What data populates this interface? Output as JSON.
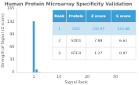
{
  "chart_data": {
    "type": "bar",
    "title": "Human Protein Microarray Specificity Validation",
    "xlabel": "Signal Rank",
    "ylabel": "Strength of Signal (Z score)",
    "x": [
      1,
      2,
      3
    ],
    "values": [
      132.97,
      7.88,
      1.27
    ],
    "color": "#3a9fd8",
    "xlim": [
      0.3,
      32
    ],
    "xticks": [
      1,
      10,
      20,
      30
    ],
    "ylim": [
      0,
      165
    ],
    "yticks": [
      0,
      33,
      66,
      99,
      132,
      165
    ],
    "grid": false,
    "table": {
      "headers": [
        "Rank",
        "Protein",
        "Z score",
        "S score"
      ],
      "rows": [
        [
          "1",
          "CD5",
          "132.97",
          "125.08"
        ],
        [
          "2",
          "SOD1",
          "7.88",
          "6.62"
        ],
        [
          "3",
          "GTF2I",
          "1.27",
          "0.97"
        ]
      ]
    }
  }
}
